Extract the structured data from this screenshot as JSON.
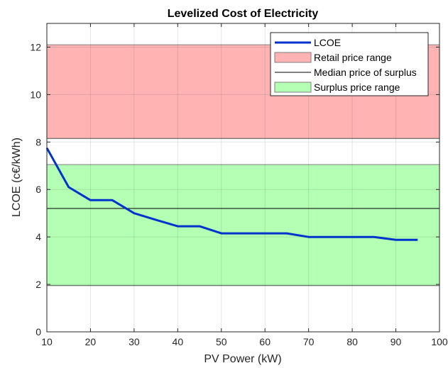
{
  "chart_data": {
    "type": "line",
    "title": "Levelized Cost of Electricity",
    "xlabel": "PV Power (kW)",
    "ylabel": "LCOE (c€/kWh)",
    "xlim": [
      10,
      100
    ],
    "ylim": [
      0,
      13
    ],
    "x_ticks": [
      10,
      20,
      30,
      40,
      50,
      60,
      70,
      80,
      90,
      100
    ],
    "y_ticks": [
      0,
      2,
      4,
      6,
      8,
      10,
      12
    ],
    "grid": true,
    "legend_position": "top-right",
    "series": [
      {
        "name": "LCOE",
        "type": "line",
        "color": "#0033cc",
        "x": [
          10,
          15,
          20,
          25,
          30,
          35,
          40,
          45,
          50,
          55,
          60,
          65,
          70,
          75,
          80,
          85,
          90,
          95
        ],
        "y": [
          7.75,
          6.1,
          5.55,
          5.55,
          5.0,
          4.72,
          4.45,
          4.45,
          4.15,
          4.15,
          4.15,
          4.15,
          4.0,
          4.0,
          4.0,
          4.0,
          3.88,
          3.88
        ]
      },
      {
        "name": "Retail price range",
        "type": "band",
        "color": "#ffb3b3",
        "y_range": [
          8.15,
          12.1
        ]
      },
      {
        "name": "Median price of surplus",
        "type": "hline",
        "color": "#000000",
        "y": 5.2
      },
      {
        "name": "Surplus price range",
        "type": "band",
        "color": "#b3ffb3",
        "y_range": [
          1.95,
          7.05
        ]
      }
    ]
  }
}
